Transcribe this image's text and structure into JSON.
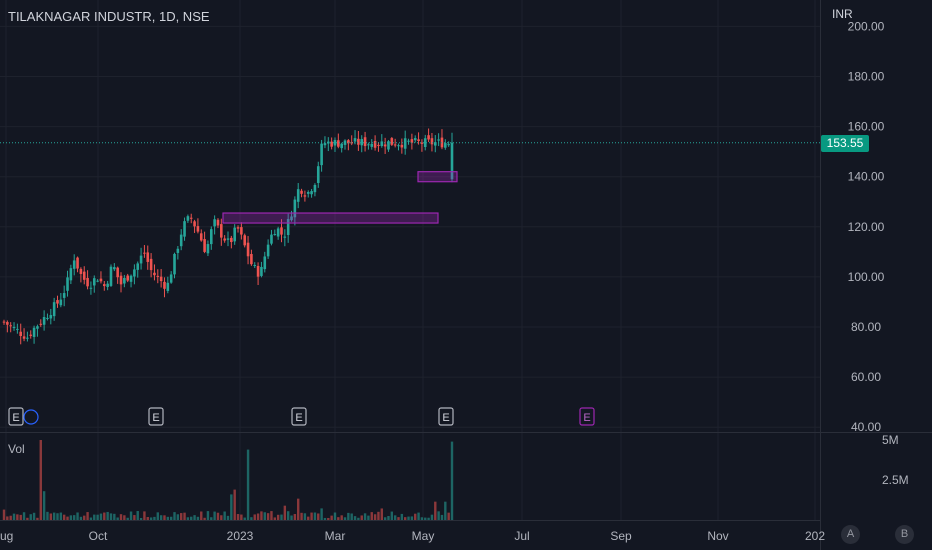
{
  "header": {
    "title": "TILAKNAGAR INDUSTR, 1D, NSE",
    "currency": "INR"
  },
  "volume_pane": {
    "label": "Vol"
  },
  "price_badge": {
    "value": "153.55"
  },
  "buttons": {
    "a_label": "A",
    "b_label": "B"
  },
  "colors": {
    "background": "#131722",
    "up": "#26a69a",
    "down": "#ef5350",
    "badge": "#089981",
    "zone": "#9c27b0",
    "grid": "#1e222d",
    "axis_text": "#b2b5be"
  },
  "chart_data": {
    "type": "candlestick",
    "title": "TILAKNAGAR INDUSTR, 1D, NSE",
    "y_unit": "INR",
    "last_price": 153.55,
    "y_ticks": [
      "200.00",
      "180.00",
      "160.00",
      "140.00",
      "120.00",
      "100.00",
      "80.00",
      "60.00",
      "40.00"
    ],
    "x_ticks": [
      "ug",
      "Oct",
      "2023",
      "Mar",
      "May",
      "Jul",
      "Sep",
      "Nov",
      "202"
    ],
    "volume_ticks": [
      "5M",
      "2.5M"
    ],
    "price_path": [
      [
        0,
        82
      ],
      [
        3,
        76
      ],
      [
        4,
        80
      ],
      [
        5,
        83
      ],
      [
        7,
        90
      ],
      [
        8,
        96
      ],
      [
        9,
        108
      ],
      [
        10,
        100
      ],
      [
        11,
        97
      ],
      [
        12,
        100
      ],
      [
        13,
        96
      ],
      [
        14,
        105
      ],
      [
        15,
        97
      ],
      [
        17,
        104
      ],
      [
        18,
        110
      ],
      [
        19,
        102
      ],
      [
        21,
        96
      ],
      [
        22,
        108
      ],
      [
        23,
        120
      ],
      [
        24,
        124
      ],
      [
        25,
        118
      ],
      [
        26,
        110
      ],
      [
        27,
        122
      ],
      [
        28,
        117
      ],
      [
        29,
        113
      ],
      [
        30,
        120
      ],
      [
        31,
        112
      ],
      [
        32,
        104
      ],
      [
        33,
        101
      ],
      [
        34,
        114
      ],
      [
        35,
        120
      ],
      [
        36,
        116
      ],
      [
        37,
        126
      ],
      [
        38,
        136
      ],
      [
        39,
        133
      ],
      [
        40,
        138
      ],
      [
        41,
        153.55
      ]
    ],
    "zones": [
      {
        "from": 36.8,
        "to": 72.0,
        "low": 121.5,
        "high": 125.5
      },
      {
        "from": 63.1,
        "to": 72.5,
        "low": 138,
        "high": 142
      }
    ],
    "earnings_markers": [
      "E",
      "E",
      "E",
      "E",
      "E"
    ],
    "earnings_x": [
      2.5,
      26.0,
      49.6,
      73.2,
      96.8
    ],
    "volume_spikes": [
      {
        "x": 11,
        "value": 5,
        "up": false
      },
      {
        "x": 73,
        "value": 4.4,
        "up": true
      },
      {
        "x": 69,
        "value": 1.9,
        "up": false
      },
      {
        "x": 12,
        "value": 1.8,
        "up": true
      },
      {
        "x": 68,
        "value": 1.6,
        "up": true
      }
    ],
    "grid": true,
    "legend": "none"
  }
}
